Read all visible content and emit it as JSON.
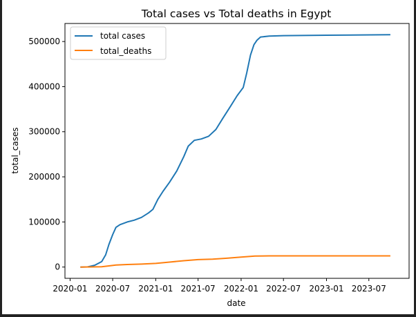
{
  "chart_data": {
    "type": "line",
    "title": "Total cases vs Total deaths in Egypt",
    "xlabel": "date",
    "ylabel": "total_cases",
    "xlim": [
      "2019-12-10",
      "2023-12-20"
    ],
    "ylim": [
      -25000,
      540000
    ],
    "yticks": [
      0,
      100000,
      200000,
      300000,
      400000,
      500000
    ],
    "ytick_labels": [
      "0",
      "100000",
      "200000",
      "300000",
      "400000",
      "500000"
    ],
    "xticks": [
      "2020-01",
      "2020-07",
      "2021-01",
      "2021-07",
      "2022-01",
      "2022-07",
      "2023-01",
      "2023-07"
    ],
    "legend": {
      "position": "top-left",
      "entries": [
        "total cases",
        "total_deaths"
      ]
    },
    "grid": false,
    "series": [
      {
        "name": "total cases",
        "color": "#1f77b4",
        "points": [
          [
            "2020-02-14",
            0
          ],
          [
            "2020-03-15",
            200
          ],
          [
            "2020-04-15",
            4000
          ],
          [
            "2020-05-15",
            12000
          ],
          [
            "2020-06-01",
            27000
          ],
          [
            "2020-06-15",
            50000
          ],
          [
            "2020-07-01",
            72000
          ],
          [
            "2020-07-15",
            88000
          ],
          [
            "2020-08-01",
            94000
          ],
          [
            "2020-09-01",
            100000
          ],
          [
            "2020-10-01",
            104000
          ],
          [
            "2020-11-01",
            110000
          ],
          [
            "2020-12-01",
            120000
          ],
          [
            "2020-12-20",
            128000
          ],
          [
            "2021-01-10",
            150000
          ],
          [
            "2021-02-01",
            168000
          ],
          [
            "2021-03-01",
            188000
          ],
          [
            "2021-04-01",
            213000
          ],
          [
            "2021-05-01",
            245000
          ],
          [
            "2021-05-20",
            268000
          ],
          [
            "2021-06-15",
            281000
          ],
          [
            "2021-07-15",
            284000
          ],
          [
            "2021-08-15",
            290000
          ],
          [
            "2021-09-15",
            305000
          ],
          [
            "2021-10-15",
            330000
          ],
          [
            "2021-11-15",
            355000
          ],
          [
            "2021-12-15",
            380000
          ],
          [
            "2022-01-10",
            398000
          ],
          [
            "2022-01-25",
            430000
          ],
          [
            "2022-02-10",
            470000
          ],
          [
            "2022-02-25",
            493000
          ],
          [
            "2022-03-10",
            503000
          ],
          [
            "2022-03-25",
            510000
          ],
          [
            "2022-05-01",
            512000
          ],
          [
            "2022-07-01",
            513000
          ],
          [
            "2023-01-01",
            514000
          ],
          [
            "2023-10-01",
            515000
          ]
        ]
      },
      {
        "name": "total_deaths",
        "color": "#ff7f0e",
        "points": [
          [
            "2020-02-14",
            0
          ],
          [
            "2020-04-01",
            200
          ],
          [
            "2020-05-15",
            800
          ],
          [
            "2020-06-15",
            2500
          ],
          [
            "2020-07-15",
            4500
          ],
          [
            "2020-09-01",
            5600
          ],
          [
            "2020-11-01",
            6500
          ],
          [
            "2021-01-01",
            8000
          ],
          [
            "2021-03-01",
            11000
          ],
          [
            "2021-05-01",
            14000
          ],
          [
            "2021-07-01",
            16500
          ],
          [
            "2021-09-01",
            17500
          ],
          [
            "2021-11-01",
            19500
          ],
          [
            "2022-01-01",
            22000
          ],
          [
            "2022-03-01",
            24500
          ],
          [
            "2022-05-01",
            24800
          ],
          [
            "2023-01-01",
            24800
          ],
          [
            "2023-10-01",
            24800
          ]
        ]
      }
    ]
  }
}
